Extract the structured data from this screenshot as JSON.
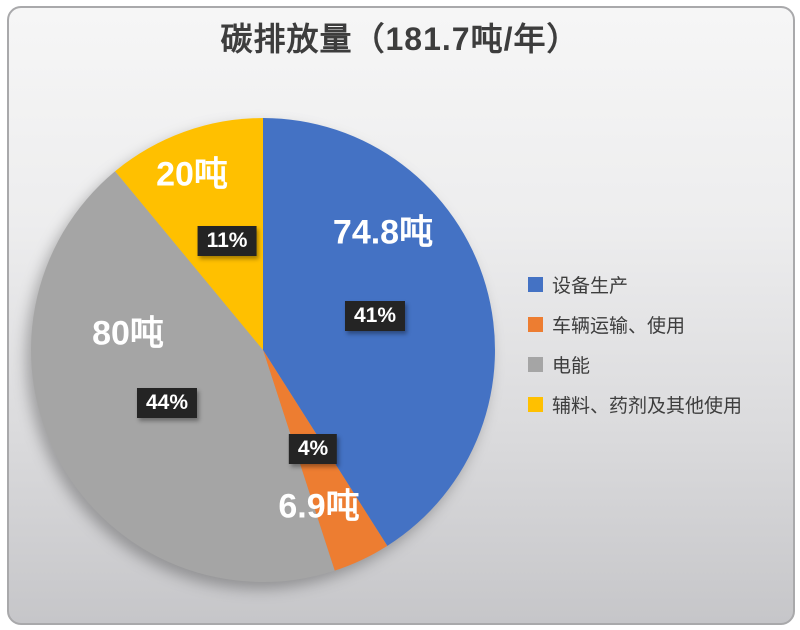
{
  "title": "碳排放量（181.7吨/年）",
  "chart_data": {
    "type": "pie",
    "title": "碳排放量（181.7吨/年）",
    "total_value": 181.7,
    "unit": "吨/年",
    "start_angle_deg": 0,
    "direction": "clockwise",
    "legend_position": "right",
    "slices": [
      {
        "label": "设备生产",
        "value": 74.8,
        "value_label": "74.8吨",
        "percent": 41,
        "percent_label": "41%",
        "color": "#4472C4"
      },
      {
        "label": "车辆运输、使用",
        "value": 6.9,
        "value_label": "6.9吨",
        "percent": 4,
        "percent_label": "4%",
        "color": "#ED7D31"
      },
      {
        "label": "电能",
        "value": 80,
        "value_label": "80吨",
        "percent": 44,
        "percent_label": "44%",
        "color": "#A5A5A5"
      },
      {
        "label": "辅料、药剂及其他使用",
        "value": 20,
        "value_label": "20吨",
        "percent": 11,
        "percent_label": "11%",
        "color": "#FFC000"
      }
    ]
  }
}
